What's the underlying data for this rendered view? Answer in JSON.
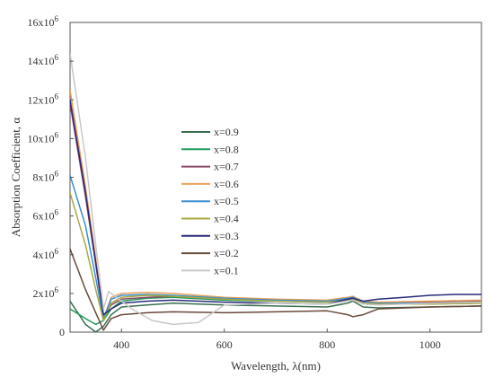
{
  "chart_data": {
    "type": "line",
    "title": "",
    "xlabel": "Wavelength, λ(nm)",
    "ylabel": "Absorption Coefficient, α",
    "xlim": [
      300,
      1100
    ],
    "ylim": [
      0,
      16000000
    ],
    "x_ticks": [
      400,
      600,
      800,
      1000
    ],
    "y_ticks": [
      {
        "value": 0,
        "label": "0"
      },
      {
        "value": 2000000,
        "label": "2x10",
        "exp": "6"
      },
      {
        "value": 4000000,
        "label": "4x10",
        "exp": "6"
      },
      {
        "value": 6000000,
        "label": "6x10",
        "exp": "6"
      },
      {
        "value": 8000000,
        "label": "8x10",
        "exp": "6"
      },
      {
        "value": 10000000,
        "label": "10x10",
        "exp": "6"
      },
      {
        "value": 12000000,
        "label": "12x10",
        "exp": "6"
      },
      {
        "value": 14000000,
        "label": "14x10",
        "exp": "6"
      },
      {
        "value": 16000000,
        "label": "16x10",
        "exp": "6"
      }
    ],
    "grid": false,
    "legend_position": "center-left",
    "series": [
      {
        "name": "x=0.9",
        "color": "#3a6e4f",
        "x": [
          300,
          330,
          350,
          365,
          380,
          400,
          450,
          500,
          600,
          700,
          800,
          840,
          850,
          870,
          900,
          1000,
          1100
        ],
        "y": [
          1600000,
          400000,
          0,
          300000,
          900000,
          1300000,
          1400000,
          1500000,
          1400000,
          1350000,
          1300000,
          1500000,
          1600000,
          1300000,
          1250000,
          1300000,
          1350000
        ]
      },
      {
        "name": "x=0.8",
        "color": "#1e9a5a",
        "x": [
          300,
          330,
          350,
          365,
          380,
          400,
          450,
          500,
          600,
          700,
          800,
          840,
          850,
          870,
          900,
          1000,
          1100
        ],
        "y": [
          1200000,
          700000,
          400000,
          600000,
          1200000,
          1600000,
          1750000,
          1800000,
          1650000,
          1600000,
          1550000,
          1700000,
          1750000,
          1500000,
          1450000,
          1450000,
          1500000
        ]
      },
      {
        "name": "x=0.7",
        "color": "#8a4a6a",
        "x": [
          300,
          330,
          350,
          365,
          380,
          400,
          450,
          500,
          600,
          700,
          800,
          840,
          850,
          870,
          900,
          1000,
          1100
        ],
        "y": [
          11800000,
          7000000,
          3500000,
          800000,
          1400000,
          1700000,
          1800000,
          1850000,
          1700000,
          1650000,
          1600000,
          1750000,
          1800000,
          1550000,
          1500000,
          1550000,
          1600000
        ]
      },
      {
        "name": "x=0.6",
        "color": "#e8a05a",
        "x": [
          300,
          330,
          350,
          365,
          380,
          400,
          450,
          500,
          600,
          700,
          800,
          840,
          850,
          870,
          900,
          1000,
          1100
        ],
        "y": [
          12500000,
          7500000,
          3800000,
          700000,
          1800000,
          2000000,
          2050000,
          2000000,
          1800000,
          1700000,
          1650000,
          1800000,
          1850000,
          1600000,
          1550000,
          1600000,
          1650000
        ]
      },
      {
        "name": "x=0.5",
        "color": "#3a8fd0",
        "x": [
          300,
          330,
          350,
          365,
          380,
          400,
          450,
          500,
          600,
          700,
          800,
          840,
          850,
          870,
          900,
          1000,
          1100
        ],
        "y": [
          8100000,
          5500000,
          2800000,
          700000,
          1700000,
          1900000,
          1950000,
          1900000,
          1750000,
          1650000,
          1600000,
          1750000,
          1800000,
          1550000,
          1500000,
          1500000,
          1550000
        ]
      },
      {
        "name": "x=0.4",
        "color": "#a8a842",
        "x": [
          300,
          330,
          350,
          365,
          380,
          400,
          450,
          500,
          600,
          700,
          800,
          840,
          850,
          870,
          900,
          1000,
          1100
        ],
        "y": [
          7200000,
          4500000,
          2200000,
          600000,
          1500000,
          1800000,
          1900000,
          1850000,
          1700000,
          1600000,
          1550000,
          1650000,
          1700000,
          1500000,
          1450000,
          1450000,
          1500000
        ]
      },
      {
        "name": "x=0.3",
        "color": "#2a2a7a",
        "x": [
          300,
          330,
          350,
          365,
          380,
          400,
          450,
          500,
          600,
          700,
          800,
          840,
          850,
          870,
          900,
          950,
          1000,
          1050,
          1100
        ],
        "y": [
          12000000,
          7200000,
          3600000,
          900000,
          1200000,
          1500000,
          1600000,
          1650000,
          1550000,
          1500000,
          1450000,
          1700000,
          1750000,
          1600000,
          1700000,
          1800000,
          1900000,
          1950000,
          1950000
        ]
      },
      {
        "name": "x=0.2",
        "color": "#6a4a3a",
        "x": [
          300,
          330,
          350,
          365,
          380,
          400,
          450,
          500,
          600,
          700,
          800,
          840,
          850,
          870,
          900,
          1000,
          1100
        ],
        "y": [
          4300000,
          2200000,
          1000000,
          100000,
          700000,
          900000,
          1000000,
          1050000,
          1000000,
          1050000,
          1100000,
          900000,
          800000,
          900000,
          1200000,
          1300000,
          1350000
        ]
      },
      {
        "name": "x=0.1",
        "color": "#c8c8c8",
        "x": [
          300,
          330,
          350,
          365,
          375,
          390,
          420,
          460,
          500,
          550,
          600,
          700,
          800,
          840,
          850,
          870,
          900,
          1000,
          1100
        ],
        "y": [
          14400000,
          9000000,
          4500000,
          1200000,
          2100000,
          1800000,
          1200000,
          600000,
          400000,
          500000,
          1400000,
          1500000,
          1450000,
          1600000,
          1650000,
          1450000,
          1400000,
          1500000,
          1550000
        ]
      }
    ]
  }
}
